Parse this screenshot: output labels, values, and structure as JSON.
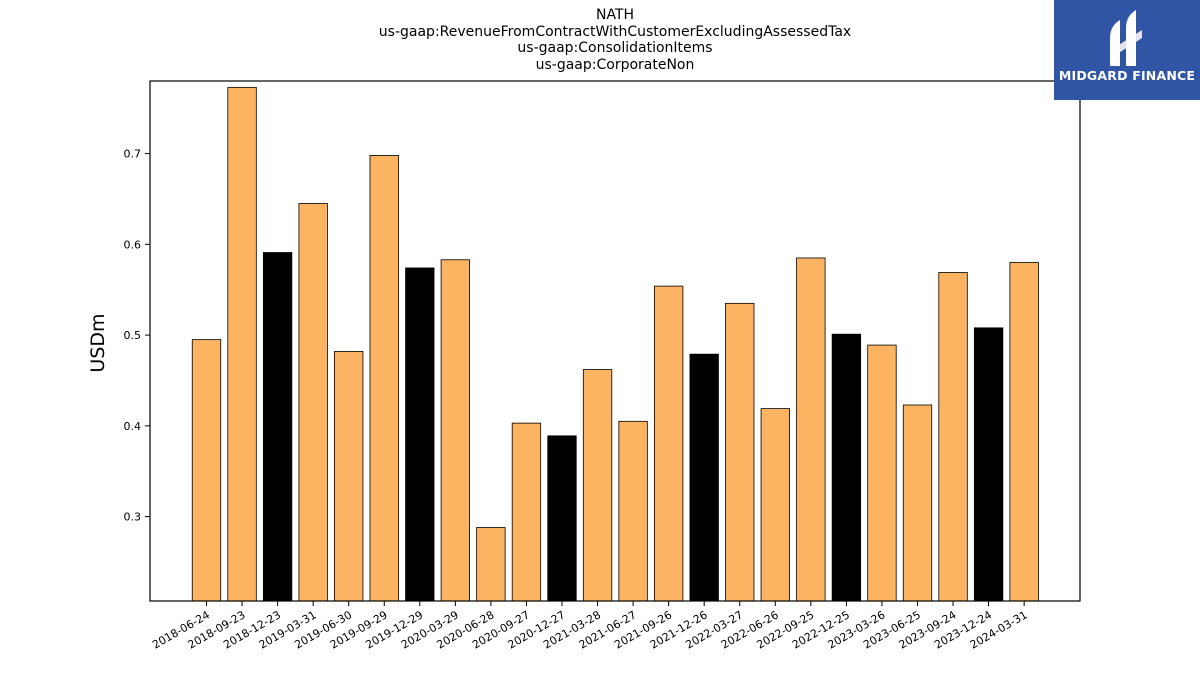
{
  "chart_data": {
    "type": "bar",
    "title_lines": [
      "NATH",
      "us-gaap:RevenueFromContractWithCustomerExcludingAssessedTax",
      "us-gaap:ConsolidationItems",
      "us-gaap:CorporateNon"
    ],
    "xlabel": "",
    "ylabel": "USDm",
    "ylim": [
      0.207,
      0.78
    ],
    "yticks": [
      0.3,
      0.4,
      0.5,
      0.6,
      0.7
    ],
    "grid": false,
    "categories": [
      "2018-06-24",
      "2018-09-23",
      "2018-12-23",
      "2019-03-31",
      "2019-06-30",
      "2019-09-29",
      "2019-12-29",
      "2020-03-29",
      "2020-06-28",
      "2020-09-27",
      "2020-12-27",
      "2021-03-28",
      "2021-06-27",
      "2021-09-26",
      "2021-12-26",
      "2022-03-27",
      "2022-06-26",
      "2022-09-25",
      "2022-12-25",
      "2023-03-26",
      "2023-06-25",
      "2023-09-24",
      "2023-12-24",
      "2024-03-31"
    ],
    "values": [
      0.495,
      0.773,
      0.591,
      0.645,
      0.482,
      0.698,
      0.574,
      0.583,
      0.288,
      0.403,
      0.389,
      0.462,
      0.405,
      0.554,
      0.479,
      0.535,
      0.419,
      0.585,
      0.501,
      0.489,
      0.423,
      0.569,
      0.508,
      0.58
    ],
    "bar_colors": [
      "#fdb462",
      "#fdb462",
      "#000000",
      "#fdb462",
      "#fdb462",
      "#fdb462",
      "#000000",
      "#fdb462",
      "#fdb462",
      "#fdb462",
      "#000000",
      "#fdb462",
      "#fdb462",
      "#fdb462",
      "#000000",
      "#fdb462",
      "#fdb462",
      "#fdb462",
      "#000000",
      "#fdb462",
      "#fdb462",
      "#fdb462",
      "#000000",
      "#fdb462"
    ]
  },
  "logo": {
    "text": "MIDGARD FINANCE",
    "background": "#2f55a4"
  }
}
